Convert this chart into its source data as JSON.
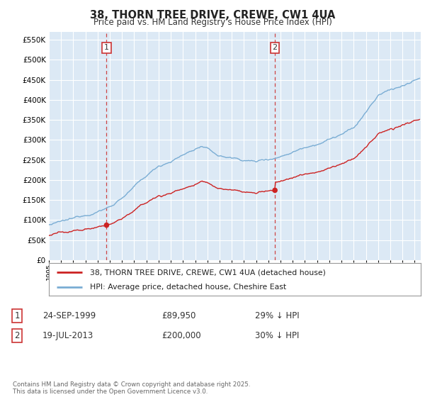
{
  "title": "38, THORN TREE DRIVE, CREWE, CW1 4UA",
  "subtitle": "Price paid vs. HM Land Registry's House Price Index (HPI)",
  "ylim": [
    0,
    570000
  ],
  "yticks": [
    0,
    50000,
    100000,
    150000,
    200000,
    250000,
    300000,
    350000,
    400000,
    450000,
    500000,
    550000
  ],
  "xlim_start": 1995.0,
  "xlim_end": 2025.5,
  "hpi_color": "#7aadd4",
  "price_color": "#cc2222",
  "marker1_date": 1999.73,
  "marker1_price": 89950,
  "marker2_date": 2013.54,
  "marker2_price": 200000,
  "vline_color": "#cc3333",
  "legend_label1": "38, THORN TREE DRIVE, CREWE, CW1 4UA (detached house)",
  "legend_label2": "HPI: Average price, detached house, Cheshire East",
  "footer": "Contains HM Land Registry data © Crown copyright and database right 2025.\nThis data is licensed under the Open Government Licence v3.0.",
  "background_color": "#ffffff",
  "plot_bg_color": "#dce9f5",
  "grid_color": "#ffffff"
}
